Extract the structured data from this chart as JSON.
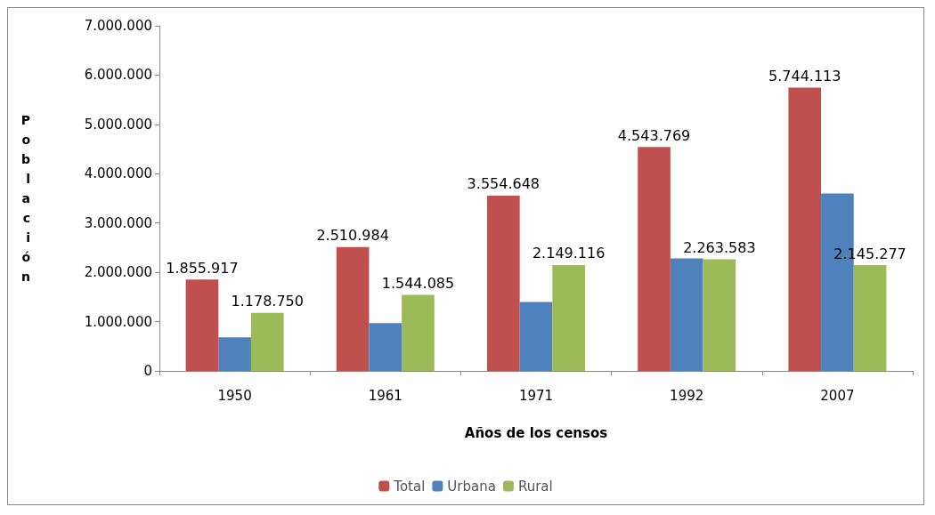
{
  "chart_data": {
    "type": "bar",
    "xlabel": "Años de los censos",
    "ylabel": "Población",
    "categories": [
      "1950",
      "1961",
      "1971",
      "1992",
      "2007"
    ],
    "series": [
      {
        "name": "Total",
        "color": "#c0504d",
        "values": [
          1855917,
          2510984,
          3554648,
          4543769,
          5744113
        ],
        "value_labels": [
          "1.855.917",
          "2.510.984",
          "3.554.648",
          "4.543.769",
          "5.744.113"
        ]
      },
      {
        "name": "Urbana",
        "color": "#4f81bd",
        "values": [
          680000,
          970000,
          1400000,
          2280000,
          3600000
        ]
      },
      {
        "name": "Rural",
        "color": "#9bbb59",
        "values": [
          1178750,
          1544085,
          2149116,
          2263583,
          2145277
        ],
        "value_labels": [
          "1.178.750",
          "1.544.085",
          "2.149.116",
          "2.263.583",
          "2.145.277"
        ]
      }
    ],
    "ylim": [
      0,
      7000000
    ],
    "yticks": [
      {
        "value": 0,
        "label": "0"
      },
      {
        "value": 1000000,
        "label": "1.000.000"
      },
      {
        "value": 2000000,
        "label": "2.000.000"
      },
      {
        "value": 3000000,
        "label": "3.000.000"
      },
      {
        "value": 4000000,
        "label": "4.000.000"
      },
      {
        "value": 5000000,
        "label": "5.000.000"
      },
      {
        "value": 6000000,
        "label": "6.000.000"
      },
      {
        "value": 7000000,
        "label": "7.000.000"
      }
    ],
    "grid": false,
    "legend": "bottom"
  }
}
